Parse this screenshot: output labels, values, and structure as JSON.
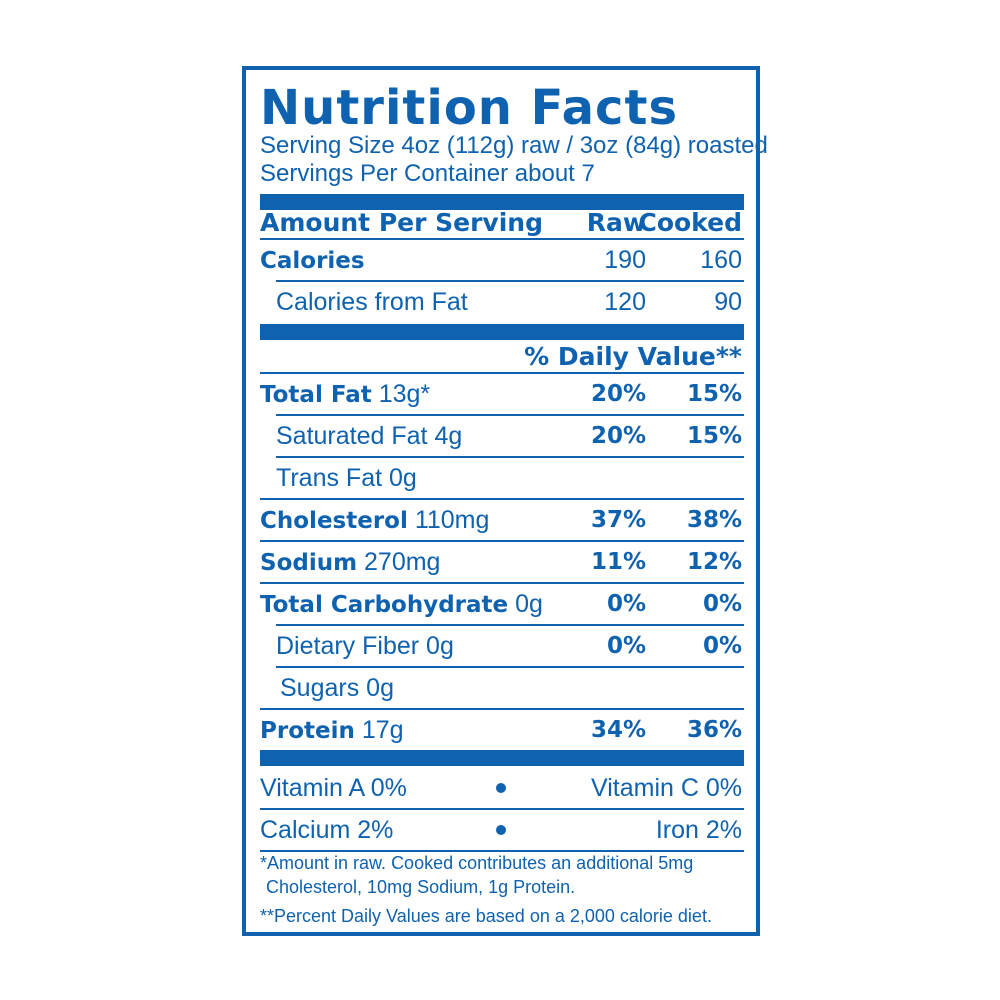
{
  "label": {
    "title": "Nutrition Facts",
    "serving_size": "Serving Size 4oz (112g) raw / 3oz (84g) roasted",
    "servings_per_container": "Servings Per Container about 7",
    "amount_header": "Amount Per Serving",
    "col_raw": "Raw",
    "col_cooked": "Cooked",
    "calories": {
      "label": "Calories",
      "raw": "190",
      "cooked": "160"
    },
    "calories_fat": {
      "label": "Calories from Fat",
      "raw": "120",
      "cooked": "90"
    },
    "dv_header": "% Daily Value**",
    "nutrients": [
      {
        "name": "Total Fat",
        "amount": "13g*",
        "raw": "20%",
        "cooked": "15%"
      },
      {
        "name": "Saturated Fat",
        "amount": "4g",
        "raw": "20%",
        "cooked": "15%"
      },
      {
        "name": "Trans Fat",
        "amount": "0g",
        "raw": "",
        "cooked": ""
      },
      {
        "name": "Cholesterol",
        "amount": "110mg",
        "raw": "37%",
        "cooked": "38%"
      },
      {
        "name": "Sodium",
        "amount": "270mg",
        "raw": "11%",
        "cooked": "12%"
      },
      {
        "name": "Total Carbohydrate",
        "amount": "0g",
        "raw": "0%",
        "cooked": "0%"
      },
      {
        "name": "Dietary Fiber",
        "amount": "0g",
        "raw": "0%",
        "cooked": "0%"
      },
      {
        "name": "Sugars",
        "amount": "0g",
        "raw": "",
        "cooked": ""
      },
      {
        "name": "Protein",
        "amount": "17g",
        "raw": "34%",
        "cooked": "36%"
      }
    ],
    "vitamins": [
      {
        "left": "Vitamin A 0%",
        "right": "Vitamin C 0%"
      },
      {
        "left": "Calcium 2%",
        "right": "Iron 2%"
      }
    ],
    "footnote1_line1": "*Amount in raw. Cooked contributes an additional 5mg",
    "footnote1_line2": "Cholesterol, 10mg Sodium, 1g Protein.",
    "footnote2": "**Percent Daily Values are based on a 2,000 calorie diet.",
    "color": "#0f62b0"
  }
}
